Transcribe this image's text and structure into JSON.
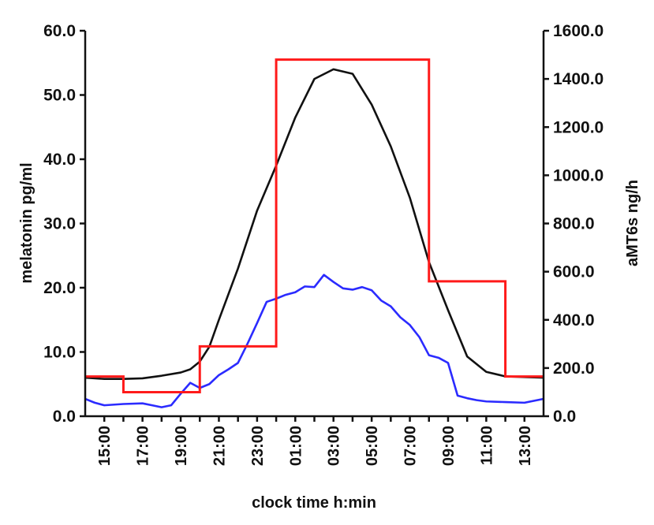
{
  "chart_data": {
    "type": "line",
    "xlabel": "clock time h:min",
    "ylabel_left": "melatonin pg/ml",
    "ylabel_right": "aMT6s ng/h",
    "ylim_left": [
      0,
      60
    ],
    "ylim_right": [
      0,
      1600
    ],
    "x_hours_range": [
      14.0,
      38.0
    ],
    "x_ticks": [
      {
        "h": 15,
        "label": "15:00"
      },
      {
        "h": 17,
        "label": "17:00"
      },
      {
        "h": 19,
        "label": "19:00"
      },
      {
        "h": 21,
        "label": "21:00"
      },
      {
        "h": 23,
        "label": "23:00"
      },
      {
        "h": 25,
        "label": "01:00"
      },
      {
        "h": 27,
        "label": "03:00"
      },
      {
        "h": 29,
        "label": "05:00"
      },
      {
        "h": 31,
        "label": "07:00"
      },
      {
        "h": 33,
        "label": "09:00"
      },
      {
        "h": 35,
        "label": "11:00"
      },
      {
        "h": 37,
        "label": "13:00"
      }
    ],
    "y_left_ticks": [
      "0.0",
      "10.0",
      "20.0",
      "30.0",
      "40.0",
      "50.0",
      "60.0"
    ],
    "y_left_values": [
      0,
      10,
      20,
      30,
      40,
      50,
      60
    ],
    "y_right_ticks": [
      "0.0",
      "200.0",
      "400.0",
      "600.0",
      "800.0",
      "1000.0",
      "1200.0",
      "1400.0",
      "1600.0"
    ],
    "y_right_values": [
      0,
      200,
      400,
      600,
      800,
      1000,
      1200,
      1400,
      1600
    ],
    "grid": false,
    "series": [
      {
        "color": "#111111",
        "axis": "left",
        "x": [
          14,
          15,
          16,
          17,
          18,
          19,
          19.5,
          20,
          20.5,
          21,
          22,
          23,
          24,
          25,
          26,
          27,
          28,
          29,
          30,
          31,
          32,
          33,
          34,
          35,
          36,
          37,
          38
        ],
        "y": [
          6.0,
          5.8,
          5.8,
          5.9,
          6.3,
          6.8,
          7.3,
          8.5,
          10.8,
          15.0,
          23.0,
          32.0,
          39.0,
          46.5,
          52.5,
          54.0,
          53.3,
          48.5,
          42.0,
          34.0,
          24.0,
          16.5,
          9.3,
          6.9,
          6.2,
          6.1,
          6.0
        ]
      },
      {
        "color": "#2b2bff",
        "axis": "left",
        "x": [
          14,
          14.5,
          15,
          16,
          17,
          17.5,
          18,
          18.5,
          19,
          19.5,
          20,
          20.5,
          21,
          21.5,
          22,
          22.5,
          23,
          23.5,
          24,
          24.5,
          25,
          25.5,
          26,
          26.5,
          27,
          27.5,
          28,
          28.5,
          29,
          29.5,
          30,
          30.5,
          31,
          31.5,
          32,
          32.5,
          33,
          33.5,
          34,
          34.5,
          35,
          36,
          37,
          38
        ],
        "y": [
          2.7,
          2.1,
          1.7,
          1.9,
          2.0,
          1.7,
          1.4,
          1.7,
          3.5,
          5.2,
          4.4,
          5.0,
          6.4,
          7.3,
          8.3,
          11.3,
          14.5,
          17.8,
          18.3,
          18.9,
          19.3,
          20.2,
          20.1,
          22.0,
          20.9,
          19.9,
          19.7,
          20.1,
          19.6,
          18.0,
          17.1,
          15.4,
          14.2,
          12.3,
          9.5,
          9.1,
          8.3,
          3.2,
          2.8,
          2.5,
          2.3,
          2.2,
          2.1,
          2.7
        ]
      },
      {
        "color": "#ff1a1a",
        "axis": "right",
        "step": true,
        "x": [
          14,
          16,
          16,
          20,
          20,
          24,
          24,
          32,
          32,
          36,
          36,
          38
        ],
        "y": [
          165,
          165,
          100,
          100,
          290,
          290,
          1480,
          1480,
          560,
          560,
          165,
          165
        ]
      }
    ]
  }
}
